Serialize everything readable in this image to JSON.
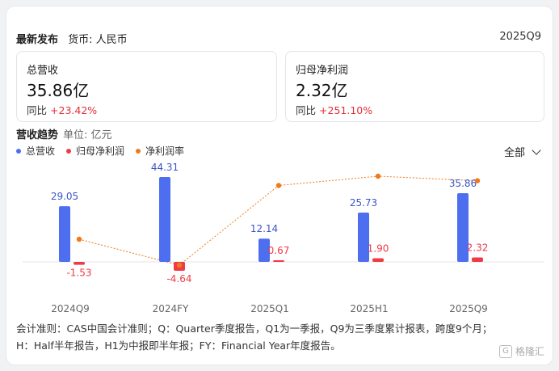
{
  "header": {
    "title": "最新发布",
    "currency": "货币: 人民币",
    "period": "2025Q9"
  },
  "kpis": [
    {
      "label": "总营收",
      "value": "35.86亿",
      "yoy_label": "同比",
      "yoy": "+23.42%"
    },
    {
      "label": "归母净利润",
      "value": "2.32亿",
      "yoy_label": "同比",
      "yoy": "+251.10%"
    }
  ],
  "trend": {
    "title": "营收趋势",
    "unit": "单位: 亿元",
    "filter": "全部"
  },
  "colors": {
    "revenue": "#4e6ef0",
    "profit": "#ef3b45",
    "margin": "#f07a1a"
  },
  "chart_data": {
    "type": "bar",
    "categories": [
      "2024Q9",
      "2024FY",
      "2025Q1",
      "2025H1",
      "2025Q9"
    ],
    "series": [
      {
        "name": "总营收",
        "values": [
          29.05,
          44.31,
          12.14,
          25.73,
          35.86
        ],
        "labels": [
          "29.05",
          "44.31",
          "12.14",
          "25.73",
          "35.86"
        ]
      },
      {
        "name": "归母净利润",
        "values": [
          -1.53,
          -4.64,
          0.67,
          1.9,
          2.32
        ],
        "labels": [
          "-1.53",
          "-4.64",
          "0.67",
          "1.90",
          "2.32"
        ]
      },
      {
        "name": "净利润率",
        "type": "line",
        "values": [
          -5.27,
          -10.47,
          5.52,
          7.38,
          6.47
        ]
      }
    ]
  },
  "note": {
    "line1": "会计准则：CAS中国会计准则；Q：Quarter季度报告，Q1为一季报，Q9为三季度累计报表，跨度9个月；",
    "line2": "H：Half半年报告，H1为中报即半年报；FY：Financial Year年度报告。"
  },
  "watermark": "格隆汇"
}
